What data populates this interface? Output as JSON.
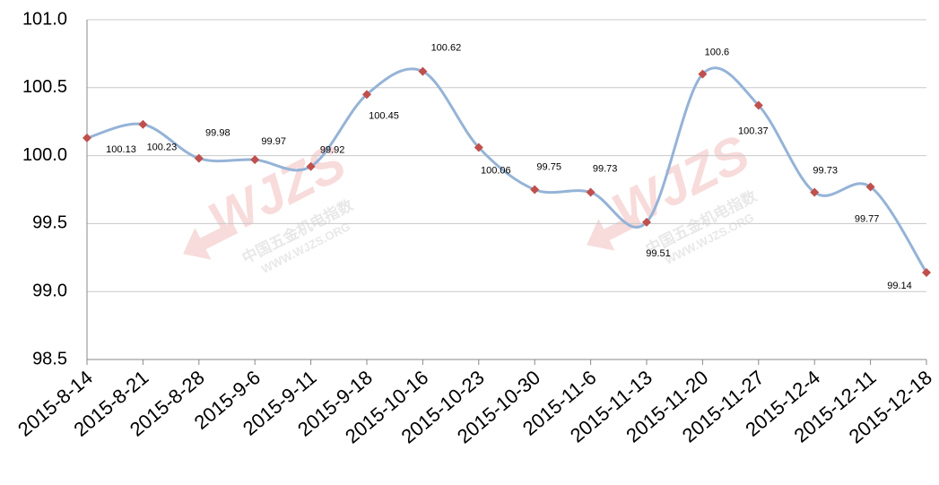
{
  "chart_data": {
    "type": "line",
    "categories": [
      "2015-8-14",
      "2015-8-21",
      "2015-8-28",
      "2015-9-6",
      "2015-9-11",
      "2015-9-18",
      "2015-10-16",
      "2015-10-23",
      "2015-10-30",
      "2015-11-6",
      "2015-11-13",
      "2015-11-20",
      "2015-11-27",
      "2015-12-4",
      "2015-12-11",
      "2015-12-18"
    ],
    "series": [
      {
        "color": "#95b3d7",
        "marker_color": "#c0504d",
        "values": [
          100.13,
          100.23,
          99.98,
          99.97,
          99.92,
          100.45,
          100.62,
          100.06,
          99.75,
          99.73,
          99.51,
          100.6,
          100.37,
          99.73,
          99.77,
          99.14
        ]
      }
    ],
    "ylim": [
      98.5,
      101
    ],
    "yticks": [
      98.5,
      {
        "value": 99,
        "label": "99.0"
      },
      99.5,
      {
        "value": 100,
        "label": "100.0"
      },
      100.5,
      {
        "value": 101,
        "label": "101.0"
      }
    ],
    "grid": true,
    "smooth": true,
    "watermark": [
      "WJZS",
      "中国五金机电指数",
      "WWW.WJZS.ORG"
    ]
  }
}
